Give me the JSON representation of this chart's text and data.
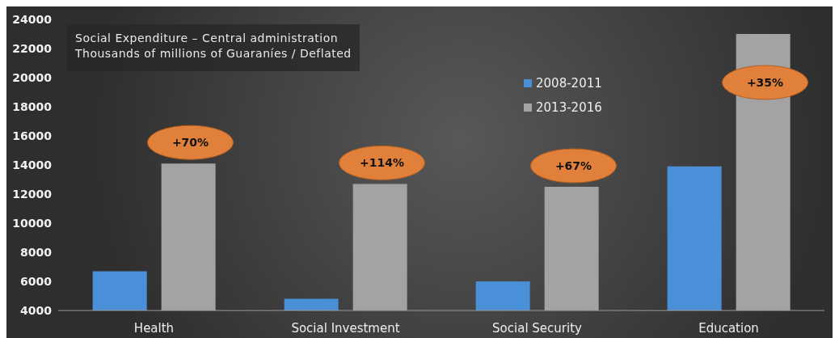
{
  "chart_data": {
    "type": "bar",
    "title": "Social Expenditure – Central administration",
    "subtitle": "Thousands of millions of Guaraníes / Deflated",
    "categories": [
      "Health",
      "Social Investment",
      "Social Security",
      "Education"
    ],
    "series": [
      {
        "name": "2008-2011",
        "color": "#4a90d9",
        "values": [
          6700,
          4800,
          6000,
          13900
        ]
      },
      {
        "name": "2013-2016",
        "color": "#a3a3a3",
        "values": [
          14100,
          12700,
          12500,
          23000
        ]
      }
    ],
    "ylim": [
      4000,
      24000
    ],
    "yticks": [
      4000,
      6000,
      8000,
      10000,
      12000,
      14000,
      16000,
      18000,
      20000,
      22000,
      24000
    ],
    "annotations": [
      "+70%",
      "+114%",
      "+67%",
      "+35%"
    ],
    "grid": false,
    "legend": "top right"
  }
}
